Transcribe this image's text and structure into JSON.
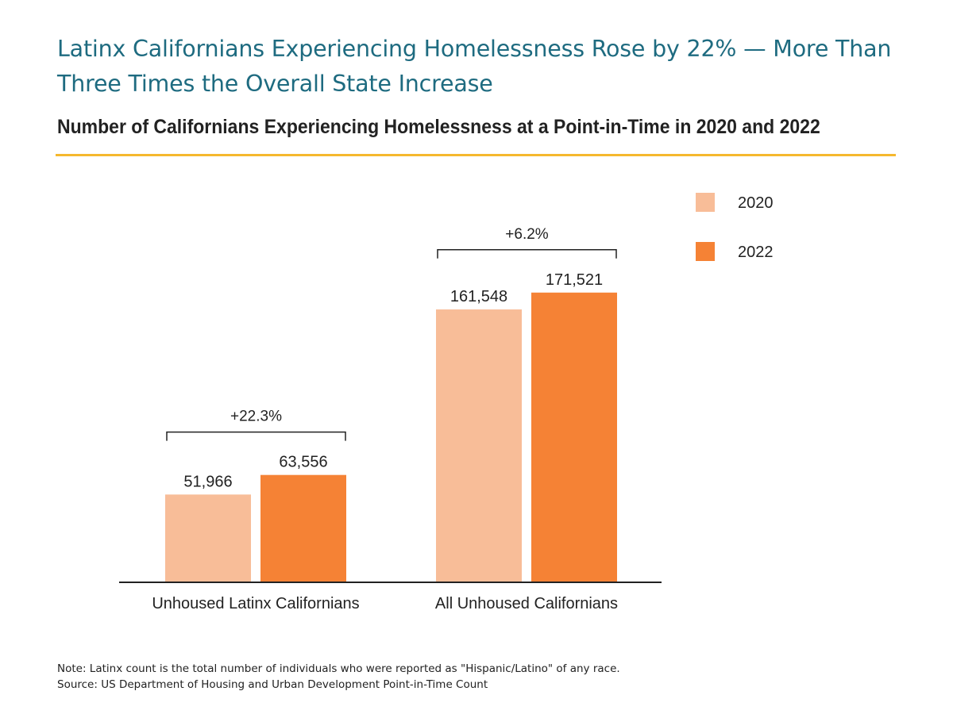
{
  "chart_data": {
    "type": "bar",
    "title": "Latinx Californians Experiencing Homelessness Rose by 22% — More Than Three Times the Overall State Increase",
    "subtitle": "Number of Californians Experiencing Homelessness at a Point-in-Time in 2020 and 2022",
    "categories": [
      "Unhoused Latinx Californians",
      "All Unhoused Californians"
    ],
    "series": [
      {
        "name": "2020",
        "values": [
          51966,
          161548
        ],
        "labels": [
          "51,966",
          "161,548"
        ],
        "color": "#f8bd98"
      },
      {
        "name": "2022",
        "values": [
          63556,
          171521
        ],
        "labels": [
          "63,556",
          "171,521"
        ],
        "color": "#f58235"
      }
    ],
    "annotations": [
      "+22.3%",
      "+6.2%"
    ],
    "xlabel": "",
    "ylabel": "",
    "ylim": [
      0,
      240000
    ],
    "grid": false,
    "legend": "top-right"
  },
  "footnote": {
    "note": "Note: Latinx count is the total number of individuals who were reported as \"Hispanic/Latino\" of any race.",
    "source": "Source: US Department of Housing and Urban Development Point-in-Time Count"
  },
  "colors": {
    "title": "#1e6b80",
    "rule": "#f5b82e",
    "text": "#222222"
  }
}
